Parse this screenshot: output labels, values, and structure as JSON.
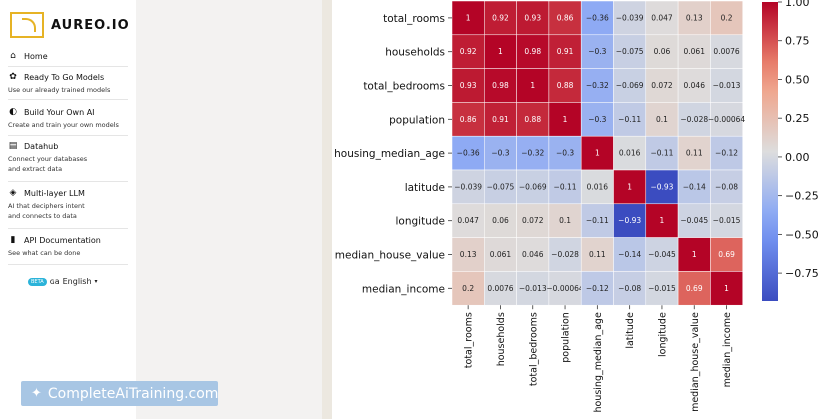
{
  "app": {
    "brand": "AUREO.IO"
  },
  "sidebar": {
    "items": [
      {
        "label": "Home",
        "sub": [],
        "icon": "home-icon"
      },
      {
        "label": "Ready To Go Models",
        "sub": [
          "Use our already trained models"
        ],
        "icon": "models-icon"
      },
      {
        "label": "Build Your Own AI",
        "sub": [
          "Create and train your own models"
        ],
        "icon": "brain-icon"
      },
      {
        "label": "Datahub",
        "sub": [
          "Connect your databases",
          "and extract data"
        ],
        "icon": "database-icon"
      },
      {
        "label": "Multi-layer LLM",
        "sub": [
          "AI that deciphers intent",
          "and connects to data"
        ],
        "icon": "layers-icon"
      },
      {
        "label": "API Documentation",
        "sub": [
          "See what can be done"
        ],
        "icon": "book-icon"
      }
    ],
    "language": {
      "badge": "BETA",
      "label": "English",
      "prefix": "ɢa"
    }
  },
  "banner": {
    "text": "CompleteAiTraining.com"
  },
  "chart_data": {
    "type": "heatmap",
    "labels": [
      "total_rooms",
      "households",
      "total_bedrooms",
      "population",
      "housing_median_age",
      "latitude",
      "longitude",
      "median_house_value",
      "median_income"
    ],
    "matrix": [
      [
        1,
        0.92,
        0.93,
        0.86,
        -0.36,
        -0.039,
        0.047,
        0.13,
        0.2
      ],
      [
        0.92,
        1,
        0.98,
        0.91,
        -0.3,
        -0.075,
        0.06,
        0.061,
        0.0076
      ],
      [
        0.93,
        0.98,
        1,
        0.88,
        -0.32,
        -0.069,
        0.072,
        0.046,
        -0.013
      ],
      [
        0.86,
        0.91,
        0.88,
        1,
        -0.3,
        -0.11,
        0.1,
        -0.028,
        -0.00064
      ],
      [
        -0.36,
        -0.3,
        -0.32,
        -0.3,
        1,
        0.016,
        -0.11,
        0.11,
        -0.12
      ],
      [
        -0.039,
        -0.075,
        -0.069,
        -0.11,
        0.016,
        1,
        -0.93,
        -0.14,
        -0.08
      ],
      [
        0.047,
        0.06,
        0.072,
        0.1,
        -0.11,
        -0.93,
        1,
        -0.045,
        -0.015
      ],
      [
        0.13,
        0.061,
        0.046,
        -0.028,
        0.11,
        -0.14,
        -0.045,
        1,
        0.69
      ],
      [
        0.2,
        0.0076,
        -0.013,
        -0.00064,
        -0.12,
        -0.08,
        -0.015,
        0.69,
        1
      ]
    ],
    "colorbar": {
      "ticks": [
        "1.00",
        "0.75",
        "0.50",
        "0.25",
        "0.00",
        "−0.25",
        "−0.50",
        "−0.75"
      ],
      "range": [
        -0.93,
        1
      ],
      "colormap": "coolwarm"
    }
  }
}
